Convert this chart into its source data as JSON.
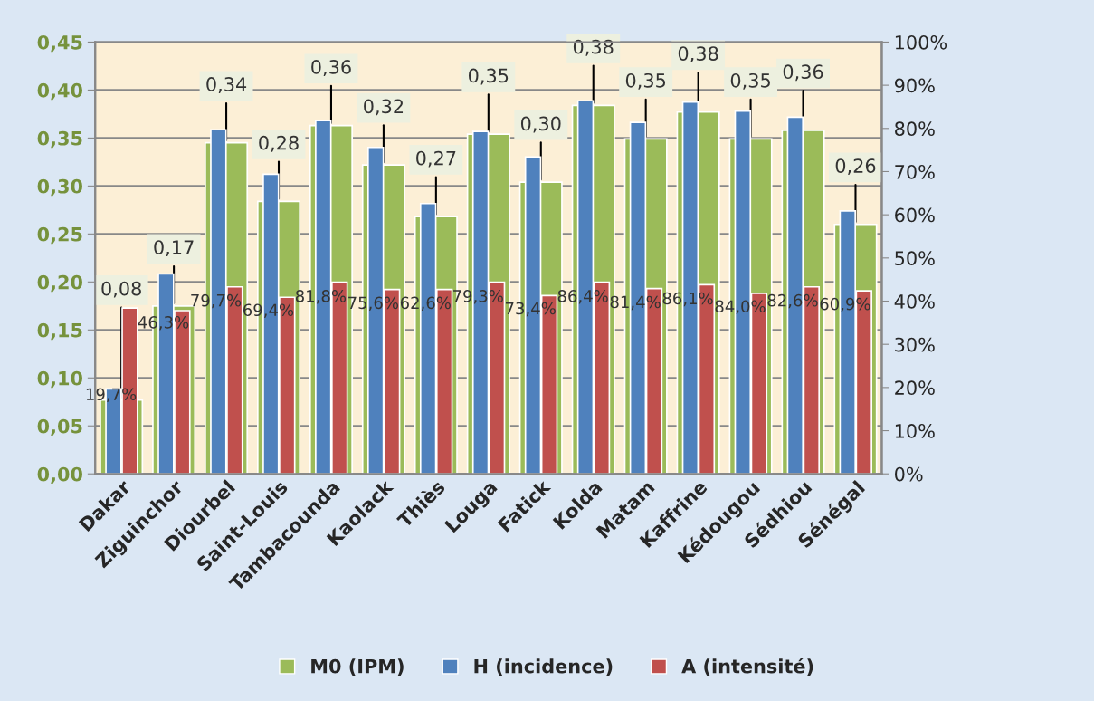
{
  "chart_data": {
    "type": "bar",
    "categories": [
      "Dakar",
      "Ziguinchor",
      "Diourbel",
      "Saint-Louis",
      "Tambacounda",
      "Kaolack",
      "Thiès",
      "Louga",
      "Fatick",
      "Kolda",
      "Matam",
      "Kaffrine",
      "Kédougou",
      "Sédhiou",
      "Sénégal"
    ],
    "series": [
      {
        "name": "M0 (IPM)",
        "color": "#9bbb59",
        "values": [
          0.077,
          0.175,
          0.345,
          0.284,
          0.363,
          0.322,
          0.268,
          0.354,
          0.304,
          0.384,
          0.349,
          0.377,
          0.349,
          0.358,
          0.26
        ],
        "value_labels": [
          "0,08",
          "0,17",
          "0,34",
          "0,28",
          "0,36",
          "0,32",
          "0,27",
          "0,35",
          "0,30",
          "0,38",
          "0,35",
          "0,38",
          "0,35",
          "0,36",
          "0,26"
        ]
      },
      {
        "name": "H (incidence)",
        "color": "#4f81bd",
        "axis": "y2",
        "values": [
          19.7,
          46.3,
          79.7,
          69.4,
          81.8,
          75.6,
          62.6,
          79.3,
          73.4,
          86.4,
          81.4,
          86.1,
          84.0,
          82.6,
          60.9
        ],
        "value_labels": [
          "19,7%",
          "46,3%",
          "79,7%",
          "69,4%",
          "81,8%",
          "75,6%",
          "62,6%",
          "79,3%",
          "73,4%",
          "86,4%",
          "81,4%",
          "86,1%",
          "84,0%",
          "82,6%",
          "60,9%"
        ]
      },
      {
        "name": "A (intensité)",
        "color": "#c0504d",
        "axis": "y2",
        "values": [
          38.4,
          37.8,
          43.3,
          40.9,
          44.4,
          42.7,
          42.7,
          44.4,
          41.3,
          44.4,
          42.9,
          43.8,
          41.8,
          43.3,
          42.4
        ]
      }
    ],
    "ylim": [
      0,
      0.45
    ],
    "yticks": [
      {
        "value": 0,
        "label": "0,00"
      },
      {
        "value": 0.05,
        "label": "0,05"
      },
      {
        "value": 0.1,
        "label": "0,10"
      },
      {
        "value": 0.15,
        "label": "0,15"
      },
      {
        "value": 0.2,
        "label": "0,20"
      },
      {
        "value": 0.25,
        "label": "0,25"
      },
      {
        "value": 0.3,
        "label": "0,30"
      },
      {
        "value": 0.35,
        "label": "0,35"
      },
      {
        "value": 0.4,
        "label": "0,40"
      },
      {
        "value": 0.45,
        "label": "0,45"
      }
    ],
    "y2lim": [
      0,
      100
    ],
    "y2ticks": [
      {
        "value": 0,
        "label": "0%"
      },
      {
        "value": 10,
        "label": "10%"
      },
      {
        "value": 20,
        "label": "20%"
      },
      {
        "value": 30,
        "label": "30%"
      },
      {
        "value": 40,
        "label": "40%"
      },
      {
        "value": 50,
        "label": "50%"
      },
      {
        "value": 60,
        "label": "60%"
      },
      {
        "value": 70,
        "label": "70%"
      },
      {
        "value": 80,
        "label": "80%"
      },
      {
        "value": 90,
        "label": "90%"
      },
      {
        "value": 100,
        "label": "100%"
      }
    ],
    "grid": "y",
    "legend": "bottom"
  }
}
